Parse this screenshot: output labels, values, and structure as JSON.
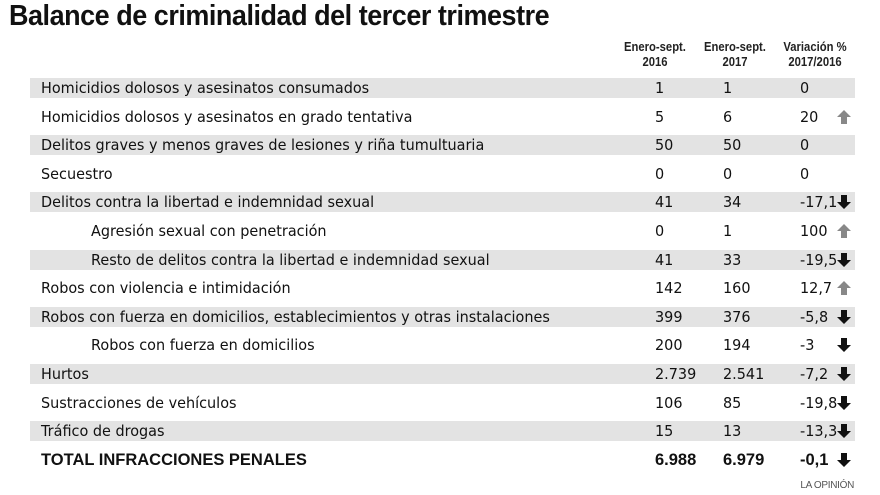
{
  "title": "Balance de criminalidad del tercer trimestre",
  "credit": "LA OPINIÓN",
  "colors": {
    "shade": "#e3e3e3",
    "up": "#888888",
    "down": "#111111"
  },
  "chart_data": {
    "type": "table",
    "title": "Balance de criminalidad del tercer trimestre",
    "columns": [
      {
        "line1": "Enero-sept.",
        "line2": "2016"
      },
      {
        "line1": "Enero-sept.",
        "line2": "2017"
      },
      {
        "line1": "Variación %",
        "line2": "2017/2016"
      }
    ],
    "rows": [
      {
        "label": "Homicidios dolosos y asesinatos consumados",
        "indent": false,
        "v2016": "1",
        "v2017": "1",
        "var": "0",
        "trend": "none"
      },
      {
        "label": "Homicidios dolosos y asesinatos en grado tentativa",
        "indent": false,
        "v2016": "5",
        "v2017": "6",
        "var": "20",
        "trend": "up"
      },
      {
        "label": "Delitos graves y menos graves de lesiones y riña tumultuaria",
        "indent": false,
        "v2016": "50",
        "v2017": "50",
        "var": "0",
        "trend": "none"
      },
      {
        "label": "Secuestro",
        "indent": false,
        "v2016": "0",
        "v2017": "0",
        "var": "0",
        "trend": "none"
      },
      {
        "label": "Delitos contra la libertad e indemnidad sexual",
        "indent": false,
        "v2016": "41",
        "v2017": "34",
        "var": "-17,1",
        "trend": "down"
      },
      {
        "label": "Agresión sexual con penetración",
        "indent": true,
        "v2016": "0",
        "v2017": "1",
        "var": "100",
        "trend": "up"
      },
      {
        "label": "Resto de delitos contra la libertad e indemnidad sexual",
        "indent": true,
        "v2016": "41",
        "v2017": "33",
        "var": "-19,5",
        "trend": "down"
      },
      {
        "label": "Robos con violencia e intimidación",
        "indent": false,
        "v2016": "142",
        "v2017": "160",
        "var": "12,7",
        "trend": "up"
      },
      {
        "label": "Robos con fuerza en domicilios, establecimientos y otras instalaciones",
        "indent": false,
        "v2016": "399",
        "v2017": "376",
        "var": "-5,8",
        "trend": "down"
      },
      {
        "label": "Robos con fuerza en domicilios",
        "indent": true,
        "v2016": "200",
        "v2017": "194",
        "var": "-3",
        "trend": "down"
      },
      {
        "label": "Hurtos",
        "indent": false,
        "v2016": "2.739",
        "v2017": "2.541",
        "var": "-7,2",
        "trend": "down"
      },
      {
        "label": "Sustracciones de vehículos",
        "indent": false,
        "v2016": "106",
        "v2017": "85",
        "var": "-19,8",
        "trend": "down"
      },
      {
        "label": "Tráfico de drogas",
        "indent": false,
        "v2016": "15",
        "v2017": "13",
        "var": "-13,3",
        "trend": "down"
      }
    ],
    "total": {
      "label": "TOTAL INFRACCIONES PENALES",
      "v2016": "6.988",
      "v2017": "6.979",
      "var": "-0,1",
      "trend": "down"
    }
  }
}
